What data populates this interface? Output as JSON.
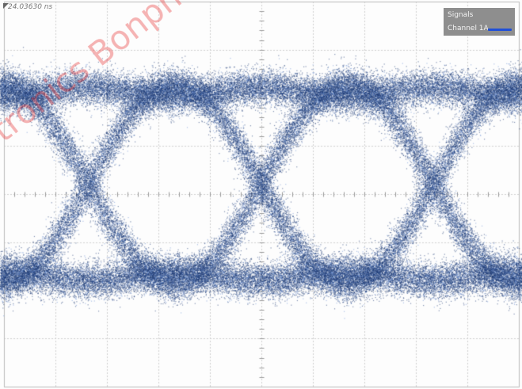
{
  "chart_data": {
    "type": "eye",
    "timestamp": "24.03630 ns",
    "grid": {
      "divisions_x": 10,
      "divisions_y": 8,
      "on": true
    },
    "legend": {
      "title": "Signals",
      "entries": [
        {
          "name": "Channel 1A",
          "color": "#1f4fd8"
        }
      ],
      "placement": "top-right"
    },
    "series_color_dark": "#1e3a74",
    "series_color_light": "#6f94d6",
    "unit_intervals_visible": 3
  },
  "watermark": "Bonphotonics"
}
